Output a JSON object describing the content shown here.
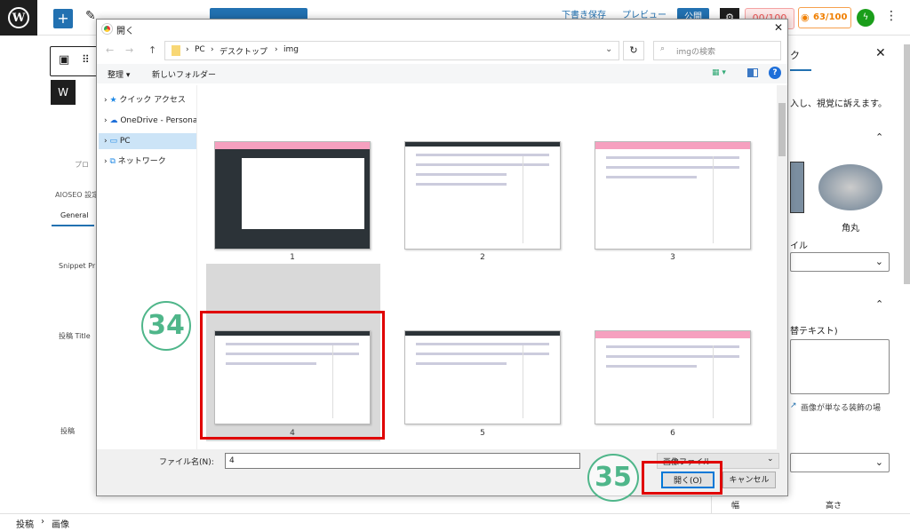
{
  "wp": {
    "top_buttons": {
      "save_draft": "下書き保存",
      "preview": "プレビュー",
      "publish": "公開"
    },
    "scores": {
      "red": "00/100",
      "orange": "63/100"
    },
    "left": {
      "aioseo": "AIOSEO 設定",
      "tab_general": "General",
      "snippet": "Snippet Pr",
      "post_title": "投稿 Title",
      "post": "投稿",
      "pro": "プロ"
    },
    "sidebar": {
      "tab": "ク",
      "desc": "入し、視覚に訴えます。",
      "style_label": "角丸",
      "style_field": "イル",
      "alt_label": "替テキスト)",
      "alt_help": "画像が単なる装飾の場",
      "dim_label1": "幅",
      "dim_label2": "高さ"
    },
    "breadcrumb": [
      "投稿",
      "画像"
    ]
  },
  "dialog": {
    "title": "開く",
    "path": [
      "PC",
      "デスクトップ",
      "img"
    ],
    "search_placeholder": "imgの検索",
    "organize": "整理 ▾",
    "new_folder": "新しいフォルダー",
    "nav": [
      {
        "label": "クイック アクセス",
        "icon": "star-icon"
      },
      {
        "label": "OneDrive - Personal",
        "icon": "cloud-icon"
      },
      {
        "label": "PC",
        "icon": "monitor-icon",
        "selected": true
      },
      {
        "label": "ネットワーク",
        "icon": "network-icon"
      }
    ],
    "files": [
      "1",
      "2",
      "3",
      "4",
      "5",
      "6"
    ],
    "selected_file": "4",
    "filename_label": "ファイル名(N):",
    "filename_value": "4",
    "filetype": "画像ファイル",
    "open": "開く(O)",
    "cancel": "キャンセル"
  },
  "annotations": {
    "step1": "34",
    "step2": "35",
    "highlight_color": "#e00000",
    "circle_color": "#4fb68a"
  }
}
